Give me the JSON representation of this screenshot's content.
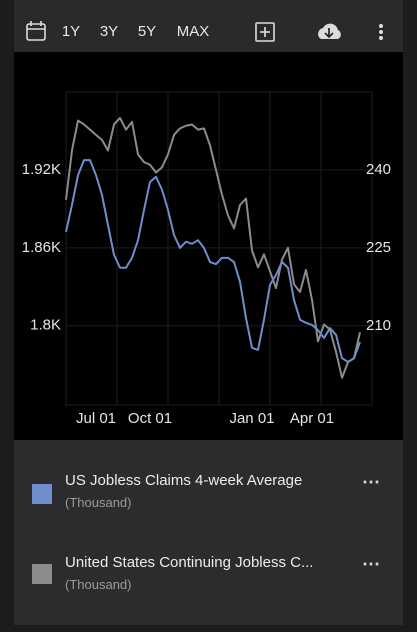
{
  "toolbar": {
    "ranges": [
      "1Y",
      "3Y",
      "5Y",
      "MAX"
    ]
  },
  "chart_data": {
    "type": "line",
    "categories": [
      null,
      null,
      null,
      null,
      null,
      "Jul 01",
      null,
      null,
      null,
      null,
      null,
      null,
      null,
      null,
      "Oct 01",
      null,
      null,
      null,
      null,
      null,
      null,
      null,
      null,
      null,
      null,
      null,
      null,
      null,
      null,
      null,
      null,
      "Jan 01",
      null,
      null,
      null,
      null,
      null,
      null,
      null,
      null,
      null,
      "Apr 01",
      null,
      null,
      null,
      null,
      null,
      null,
      null,
      null
    ],
    "ylim": [
      1739,
      1980
    ],
    "yticks": [
      {
        "value": 1800,
        "label": "1.8K"
      },
      {
        "value": 1860,
        "label": "1.86K"
      },
      {
        "value": 1920,
        "label": "1.92K"
      }
    ],
    "y2lim": [
      194.8,
      255
    ],
    "y2ticks": [
      210,
      225,
      240
    ],
    "grid": true,
    "series": [
      {
        "name": "US Jobless Claims 4-week Average",
        "unit": "(Thousand)",
        "color": "#6f8fcc",
        "axis": "y2",
        "values": [
          228.1,
          233.3,
          239.0,
          241.9,
          241.9,
          239.0,
          235.2,
          229.4,
          223.7,
          221.2,
          221.2,
          223.1,
          226.5,
          232.3,
          237.7,
          238.7,
          236.2,
          232.3,
          227.5,
          225.0,
          226.2,
          225.8,
          226.5,
          225.0,
          222.3,
          221.9,
          223.1,
          223.1,
          222.3,
          218.5,
          211.5,
          205.8,
          205.4,
          211.2,
          217.9,
          219.8,
          222.3,
          221.2,
          215.0,
          211.2,
          210.6,
          210.2,
          209.2,
          207.7,
          209.6,
          208.3,
          203.8,
          203.1,
          203.8,
          206.9
        ]
      },
      {
        "name": "United States Continuing Jobless C...",
        "unit": "(Thousand)",
        "color": "#8c8c8c",
        "values": [
          1897,
          1935,
          1958,
          1955,
          1951,
          1947,
          1943,
          1935,
          1955,
          1960,
          1951,
          1957,
          1932,
          1926,
          1924,
          1918,
          1922,
          1932,
          1947,
          1952,
          1954,
          1955,
          1951,
          1952,
          1939,
          1920,
          1901,
          1885,
          1875,
          1893,
          1898,
          1858,
          1845,
          1855,
          1842,
          1829,
          1851,
          1860,
          1832,
          1826,
          1843,
          1820,
          1788,
          1801,
          1797,
          1780,
          1760,
          1772,
          1775,
          1795
        ]
      }
    ]
  }
}
